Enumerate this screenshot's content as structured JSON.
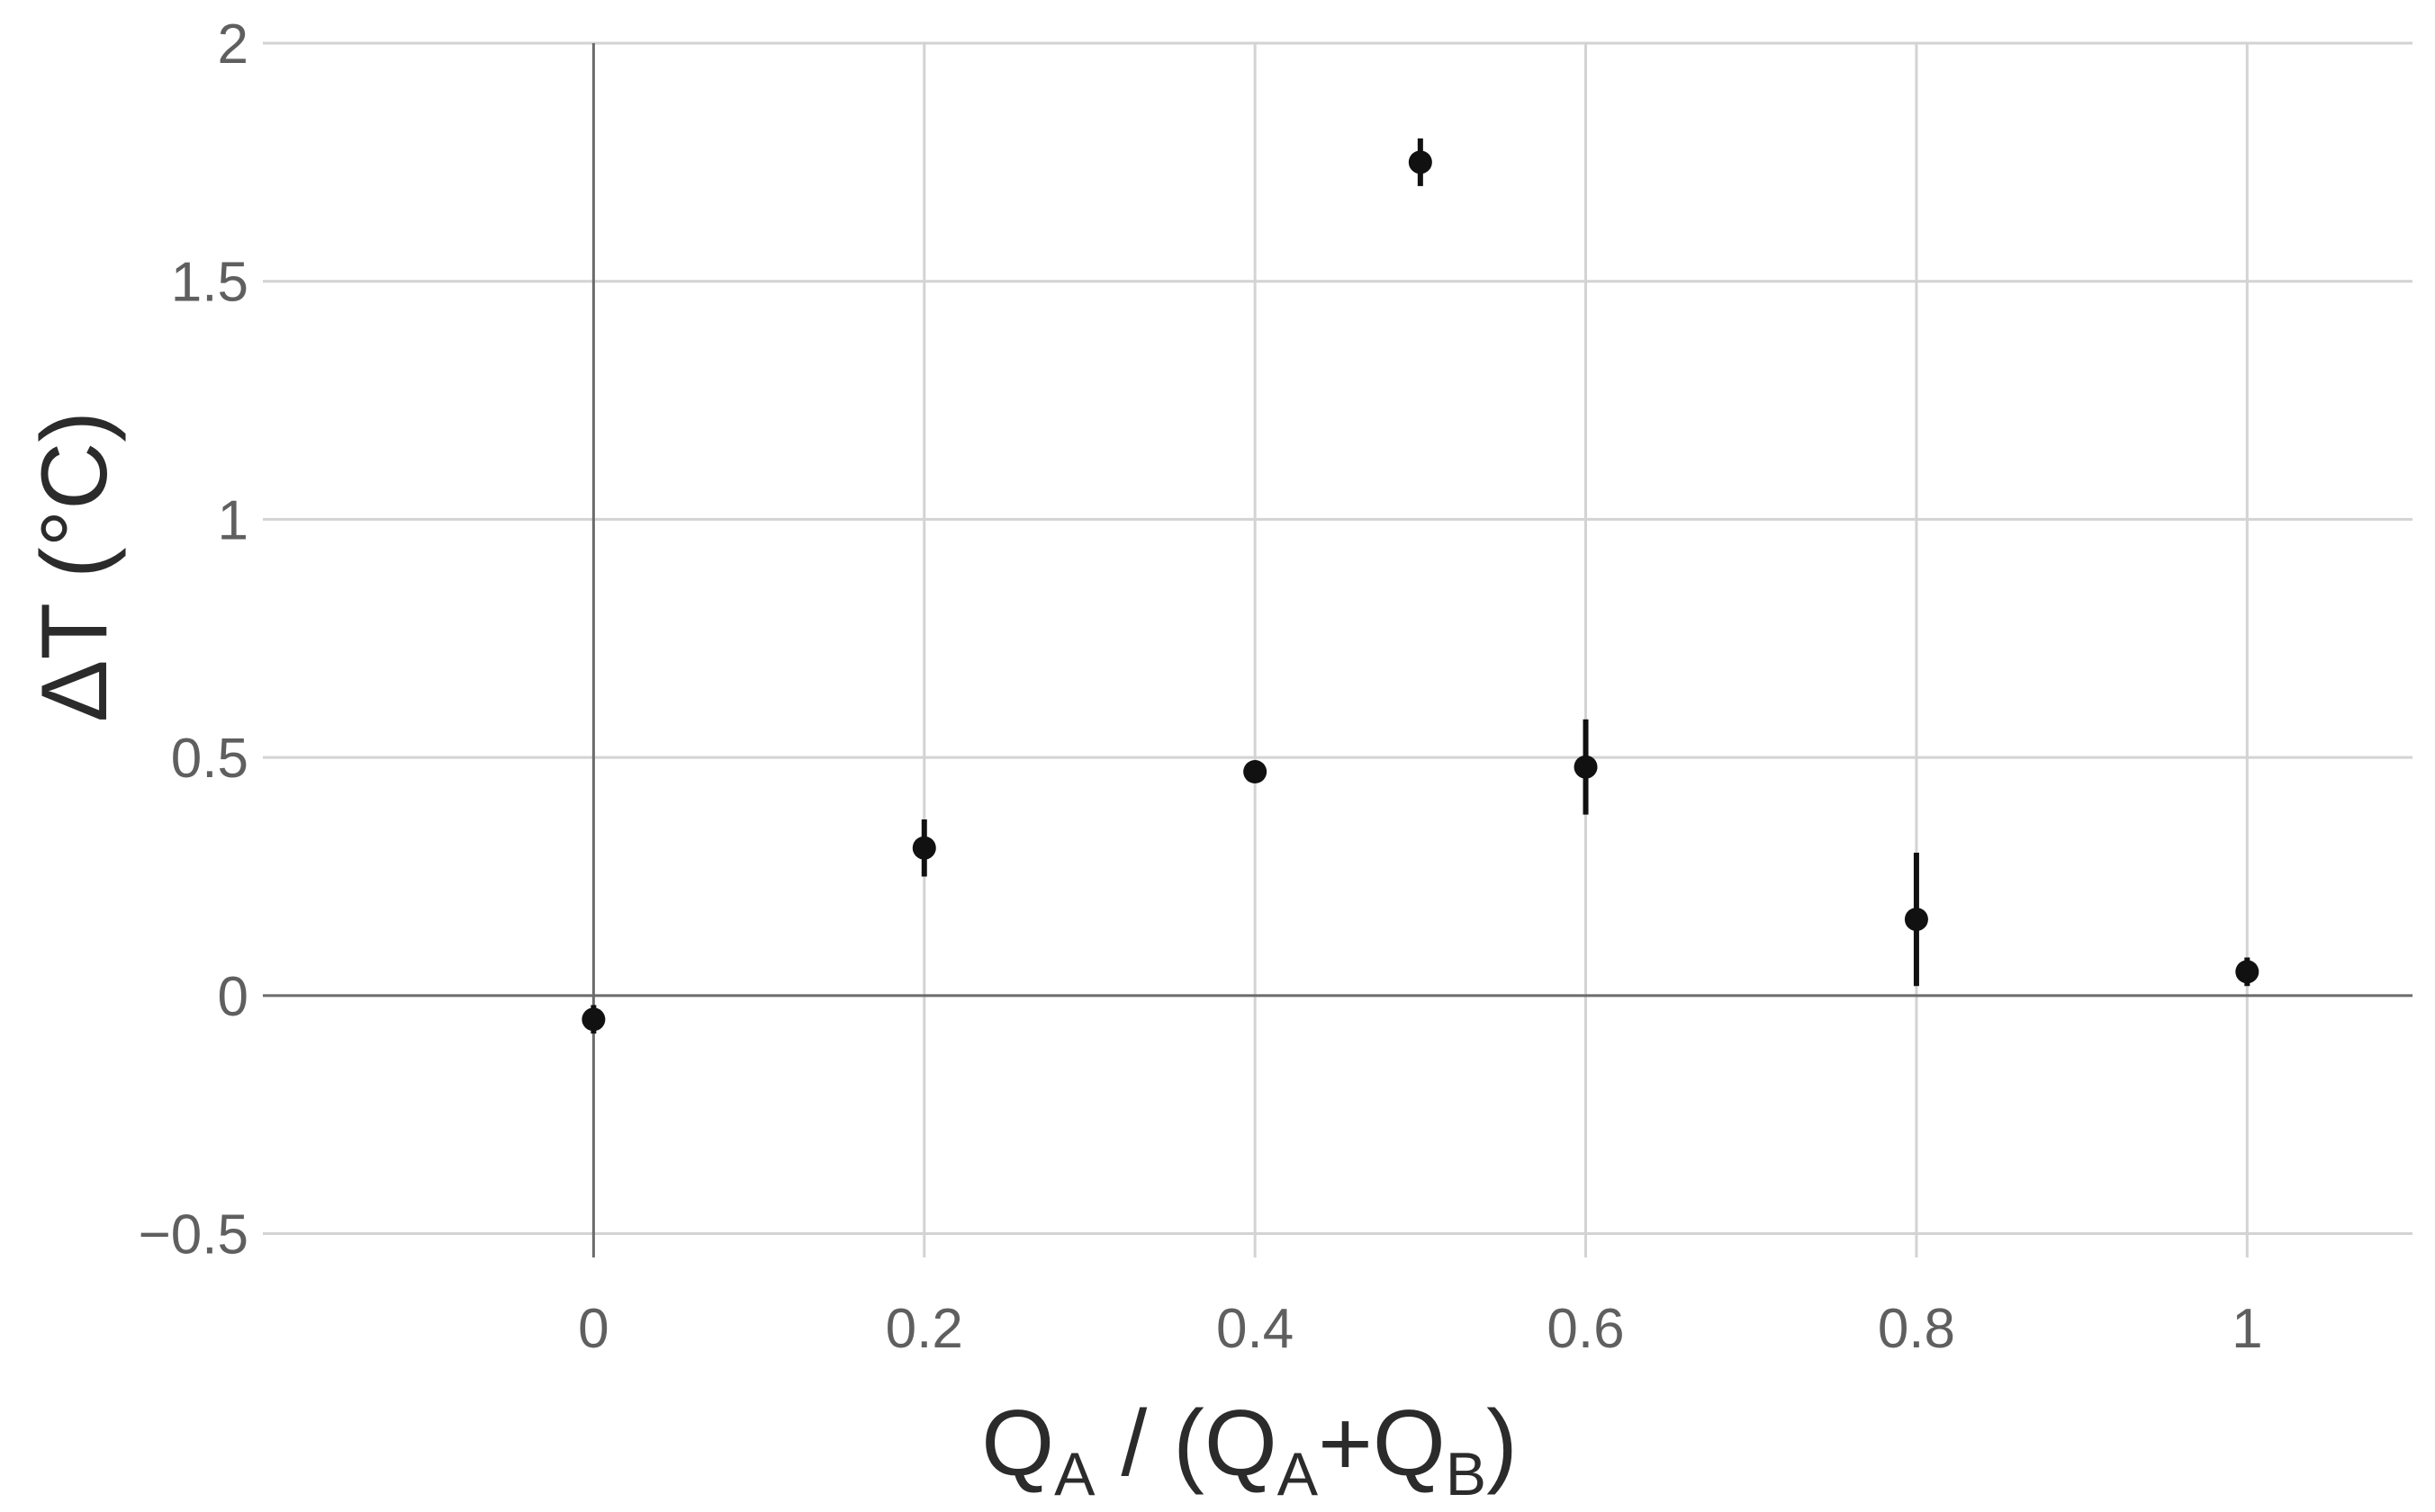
{
  "chart_data": {
    "type": "scatter",
    "title": "",
    "xlabel": {
      "parts": [
        {
          "text": "Q",
          "sub": false
        },
        {
          "text": "A",
          "sub": true
        },
        {
          "text": " / (Q",
          "sub": false
        },
        {
          "text": "A",
          "sub": true
        },
        {
          "text": "+Q",
          "sub": false
        },
        {
          "text": "B",
          "sub": true
        },
        {
          "text": ")",
          "sub": false
        }
      ]
    },
    "ylabel": "ΔT (°C)",
    "xlim": [
      -0.2,
      1.1
    ],
    "ylim": [
      -0.55,
      2.0
    ],
    "xticks": [
      {
        "value": 0,
        "label": "0"
      },
      {
        "value": 0.2,
        "label": "0.2"
      },
      {
        "value": 0.4,
        "label": "0.4"
      },
      {
        "value": 0.6,
        "label": "0.6"
      },
      {
        "value": 0.8,
        "label": "0.8"
      },
      {
        "value": 1,
        "label": "1"
      }
    ],
    "yticks": [
      {
        "value": -0.5,
        "label": "−0.5"
      },
      {
        "value": 0,
        "label": "0"
      },
      {
        "value": 0.5,
        "label": "0.5"
      },
      {
        "value": 1,
        "label": "1"
      },
      {
        "value": 1.5,
        "label": "1.5"
      },
      {
        "value": 2,
        "label": "2"
      }
    ],
    "grid": true,
    "points": [
      {
        "x": 0,
        "y": -0.05,
        "ymin": -0.08,
        "ymax": -0.02
      },
      {
        "x": 0.2,
        "y": 0.31,
        "ymin": 0.25,
        "ymax": 0.37
      },
      {
        "x": 0.4,
        "y": 0.47,
        "ymin": 0.45,
        "ymax": 0.49
      },
      {
        "x": 0.5,
        "y": 1.75,
        "ymin": 1.7,
        "ymax": 1.8
      },
      {
        "x": 0.6,
        "y": 0.48,
        "ymin": 0.38,
        "ymax": 0.58
      },
      {
        "x": 0.8,
        "y": 0.16,
        "ymin": 0.02,
        "ymax": 0.3
      },
      {
        "x": 1,
        "y": 0.05,
        "ymin": 0.02,
        "ymax": 0.08
      }
    ],
    "colors": {
      "point": "#111111",
      "grid": "#d3d3d3",
      "zero_line": "#6b6b6b"
    }
  }
}
